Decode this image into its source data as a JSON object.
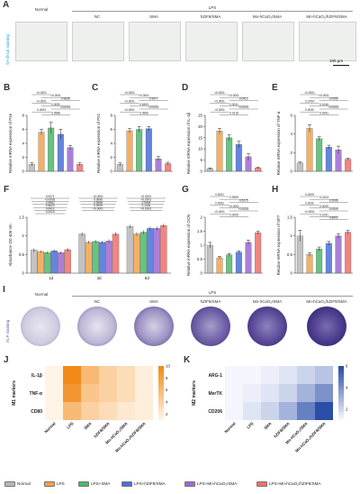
{
  "panels": {
    "A": {
      "letter": "A",
      "group_normal": "Normal",
      "group_lps": "LPS",
      "columns": [
        "NC",
        "SMA",
        "hZIF8/SMA",
        "Mn-hCaO₂/SMA",
        "Mn-hCaO₂/hZIF8/SMA"
      ],
      "side_label": "SA-βGal staining",
      "scale_bar": "100 μm"
    },
    "I": {
      "letter": "I",
      "group_normal": "Normal",
      "group_lps": "LPS",
      "columns": [
        "NC",
        "SMA",
        "hZIF8/SMA",
        "Mn-hCaO₂/SMA",
        "Mn-hCaO₂/hZIF8/SMA"
      ],
      "side_label": "ALP staining"
    }
  },
  "colors": {
    "normal": "#b7b7b7",
    "lps": "#f2a24a",
    "lps_sma": "#4db86a",
    "lps_hzif8": "#4a6fd8",
    "lps_mnhcao2": "#9b6ad0",
    "lps_all": "#f0706a",
    "heat_low": "#fff4e6",
    "heat_high": "#f28a1a",
    "heat2_low": "#f4f6fd",
    "heat2_high": "#2b4ea8"
  },
  "charts": {
    "B": {
      "letter": "B",
      "ylabel": "Relative mRNA expression of P16",
      "ylim": [
        0,
        8
      ],
      "yticks": [
        0,
        2,
        4,
        6,
        8
      ],
      "values": [
        1.0,
        5.6,
        6.2,
        5.3,
        3.4,
        1.0
      ],
      "errors": [
        0.2,
        0.4,
        0.8,
        0.7,
        0.3,
        0.2
      ],
      "pvals": [
        "<0.0001",
        "<0.0001",
        "0.9636",
        "<0.0001",
        "0.0050",
        "<0.0001",
        "0.0003",
        "0.3586"
      ]
    },
    "C": {
      "letter": "C",
      "ylabel": "Relative mRNA expression of P21",
      "ylim": [
        0,
        8
      ],
      "yticks": [
        0,
        2,
        4,
        6,
        8
      ],
      "values": [
        1.0,
        5.8,
        6.0,
        6.1,
        1.8,
        1.1
      ],
      "errors": [
        0.2,
        0.3,
        0.4,
        0.3,
        0.3,
        0.2
      ],
      "pvals": [
        "<0.0001",
        "<0.0001",
        "0.9977",
        "<0.0001",
        "0.8493",
        "<0.0001",
        "<0.0001",
        "0.3960"
      ]
    },
    "D": {
      "letter": "D",
      "ylabel": "Relative mRNA expression of IL-1β",
      "ylim": [
        0,
        25
      ],
      "yticks": [
        0,
        5,
        10,
        15,
        20,
        25
      ],
      "values": [
        1.2,
        18.0,
        15.0,
        12.0,
        6.5,
        1.5
      ],
      "errors": [
        0.3,
        1.2,
        1.3,
        1.4,
        1.5,
        0.3
      ],
      "pvals": [
        "<0.0001",
        "<0.0001",
        "0.0412",
        "<0.0001",
        "0.0041",
        "<0.0001",
        "<0.0001",
        "0.0118"
      ]
    },
    "E": {
      "letter": "E",
      "ylabel": "Relative mRNA expression of TNF-α",
      "ylim": [
        0,
        6
      ],
      "yticks": [
        0,
        2,
        4,
        6
      ],
      "values": [
        0.9,
        4.6,
        3.5,
        2.6,
        2.3,
        1.3
      ],
      "errors": [
        0.1,
        0.4,
        0.2,
        0.2,
        0.4,
        0.1
      ],
      "pvals": [
        "<0.0001",
        "<0.0001",
        "0.0055",
        "0.0794",
        "0.0146",
        "<0.0001",
        "0.0030",
        "0.0341"
      ]
    },
    "G": {
      "letter": "G",
      "ylabel": "Relative mRNA expression of OCN",
      "ylim": [
        0,
        2.0
      ],
      "yticks": [
        0,
        0.5,
        1.0,
        1.5,
        2.0
      ],
      "values": [
        1.0,
        0.55,
        0.65,
        0.75,
        1.1,
        1.45
      ],
      "errors": [
        0.1,
        0.05,
        0.05,
        0.05,
        0.08,
        0.05
      ],
      "pvals": [
        "0.0001",
        "0.9999",
        "0.5275",
        "0.0062",
        "<0.0001",
        "<0.0001",
        "<0.0001",
        "0.0005"
      ]
    },
    "H": {
      "letter": "H",
      "ylabel": "Relative mRNA expression of SP7",
      "ylim": [
        0,
        1.5
      ],
      "yticks": [
        0,
        0.5,
        1.0,
        1.5
      ],
      "values": [
        1.0,
        0.5,
        0.65,
        0.8,
        1.0,
        1.1
      ],
      "errors": [
        0.15,
        0.05,
        0.05,
        0.05,
        0.06,
        0.05
      ],
      "pvals": [
        "0.0009",
        "0.0103",
        "0.2006",
        "0.0030",
        "0.0009",
        "0.0009",
        "<0.0001",
        "0.1051",
        "0.8602"
      ]
    }
  },
  "chart_F": {
    "letter": "F",
    "ylabel": "Absorbance OD 405 nm",
    "ylim": [
      0,
      1.5
    ],
    "yticks": [
      0,
      0.5,
      1.0,
      1.5
    ],
    "days": [
      "1d",
      "3d",
      "5d"
    ],
    "values": [
      [
        0.62,
        0.58,
        0.55,
        0.6,
        0.55,
        0.63
      ],
      [
        1.05,
        0.83,
        0.85,
        0.83,
        0.86,
        1.05
      ],
      [
        1.25,
        1.05,
        1.1,
        1.2,
        1.2,
        1.28
      ]
    ],
    "errors": [
      [
        0.05,
        0.03,
        0.03,
        0.03,
        0.03,
        0.05
      ],
      [
        0.05,
        0.04,
        0.04,
        0.04,
        0.05,
        0.05
      ],
      [
        0.05,
        0.05,
        0.05,
        0.05,
        0.05,
        0.05
      ]
    ],
    "pvals_d1": [
      "0.0071",
      "<0.0001",
      "0.9967",
      "0.8629",
      "0.6412",
      "0.0013"
    ],
    "pvals_d3": [
      "<0.0001",
      "0.9999",
      "0.9998",
      "0.9999",
      "<0.0001"
    ],
    "pvals_d5": [
      "<0.0001",
      "<0.0001",
      "0.9994",
      "0.1026",
      "<0.0001"
    ]
  },
  "heatmaps": {
    "J": {
      "letter": "J",
      "ylabel": "M1 markers",
      "rows": [
        "IL-1β",
        "TNF-α",
        "CD80"
      ],
      "cols": [
        "Normal",
        "LPS",
        "SMA",
        "hZIF8/SMA",
        "Mn-hCaO₂/SMA",
        "Mn-hCaO₂/hZIF8/SMA"
      ],
      "values": [
        [
          1,
          10,
          6,
          4,
          3,
          1.5
        ],
        [
          1,
          9,
          5,
          4,
          3,
          1.5
        ],
        [
          1,
          6,
          4,
          3,
          2,
          1.5
        ]
      ],
      "scale": [
        2,
        4,
        6,
        8,
        10
      ],
      "max": 10
    },
    "K": {
      "letter": "K",
      "ylabel": "M2 markers",
      "rows": [
        "ARG-1",
        "MerTK",
        "CD206"
      ],
      "cols": [
        "Normal",
        "LPS",
        "SMA",
        "hZIF8/SMA",
        "Mn-hCaO₂/SMA",
        "Mn-hCaO₂/hZIF8/SMA"
      ],
      "values": [
        [
          1,
          1,
          1.2,
          1.5,
          2,
          2.5
        ],
        [
          1,
          1.2,
          1.5,
          2,
          3,
          4
        ],
        [
          1,
          1.5,
          2,
          3,
          4.5,
          6
        ]
      ],
      "scale": [
        2,
        4,
        6
      ],
      "max": 6
    }
  },
  "legend": [
    "Normal",
    "LPS",
    "LPS+SMA",
    "LPS+hZIF8/SMA",
    "LPS+Mn-hCaO₂/SMA",
    "LPS+Mn-hCaO₂/hZIF8/SMA"
  ]
}
